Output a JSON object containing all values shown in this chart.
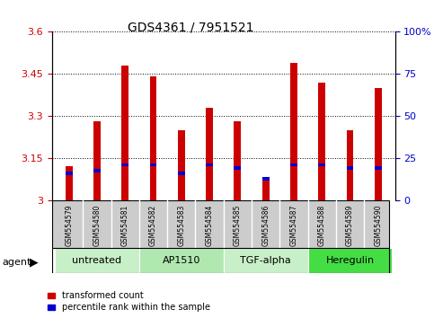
{
  "title": "GDS4361 / 7951521",
  "samples": [
    "GSM554579",
    "GSM554580",
    "GSM554581",
    "GSM554582",
    "GSM554583",
    "GSM554584",
    "GSM554585",
    "GSM554586",
    "GSM554587",
    "GSM554588",
    "GSM554589",
    "GSM554590"
  ],
  "red_values": [
    3.12,
    3.28,
    3.48,
    3.44,
    3.25,
    3.33,
    3.28,
    3.07,
    3.49,
    3.42,
    3.25,
    3.4
  ],
  "blue_positions": [
    3.09,
    3.1,
    3.12,
    3.12,
    3.09,
    3.12,
    3.11,
    3.07,
    3.12,
    3.12,
    3.11,
    3.11
  ],
  "ylim_left": [
    3.0,
    3.6
  ],
  "yticks_left": [
    3.0,
    3.15,
    3.3,
    3.45,
    3.6
  ],
  "yticks_right": [
    0,
    25,
    50,
    75,
    100
  ],
  "ytick_labels_left": [
    "3",
    "3.15",
    "3.3",
    "3.45",
    "3.6"
  ],
  "ytick_labels_right": [
    "0",
    "25",
    "50",
    "75",
    "100%"
  ],
  "groups": [
    {
      "label": "untreated",
      "start": 0,
      "end": 3
    },
    {
      "label": "AP1510",
      "start": 3,
      "end": 6
    },
    {
      "label": "TGF-alpha",
      "start": 6,
      "end": 9
    },
    {
      "label": "Heregulin",
      "start": 9,
      "end": 12
    }
  ],
  "group_colors": [
    "#c8f0c8",
    "#b0e8b0",
    "#c8f0c8",
    "#44dd44"
  ],
  "bar_color": "#cc0000",
  "blue_color": "#0000cc",
  "bar_width": 0.25,
  "base_value": 3.0,
  "legend_red": "transformed count",
  "legend_blue": "percentile rank within the sample",
  "title_fontsize": 10,
  "axis_color_left": "#cc0000",
  "axis_color_right": "#0000cc",
  "sample_area_color": "#cccccc",
  "blue_bar_height": 0.012
}
